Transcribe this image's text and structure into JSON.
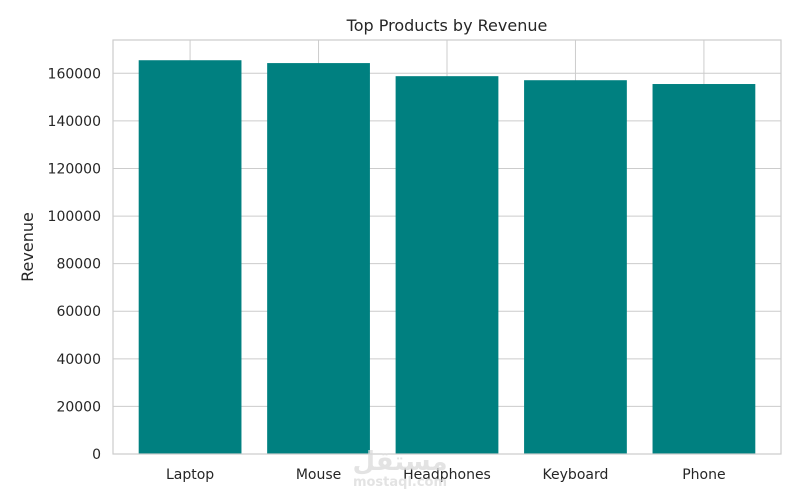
{
  "chart_data": {
    "type": "bar",
    "title": "Top Products by Revenue",
    "xlabel": "",
    "ylabel": "Revenue",
    "categories": [
      "Laptop",
      "Mouse",
      "Headphones",
      "Keyboard",
      "Phone"
    ],
    "values": [
      165500,
      164300,
      158800,
      157100,
      155500
    ],
    "ylim": [
      0,
      174000
    ],
    "yticks": [
      0,
      20000,
      40000,
      60000,
      80000,
      100000,
      120000,
      140000,
      160000
    ],
    "grid": true,
    "bar_color": "#008080",
    "grid_color": "#cccccc",
    "axis_color": "#cccccc"
  },
  "watermark": {
    "brand": "مستقل",
    "url": "mostaql.com"
  }
}
